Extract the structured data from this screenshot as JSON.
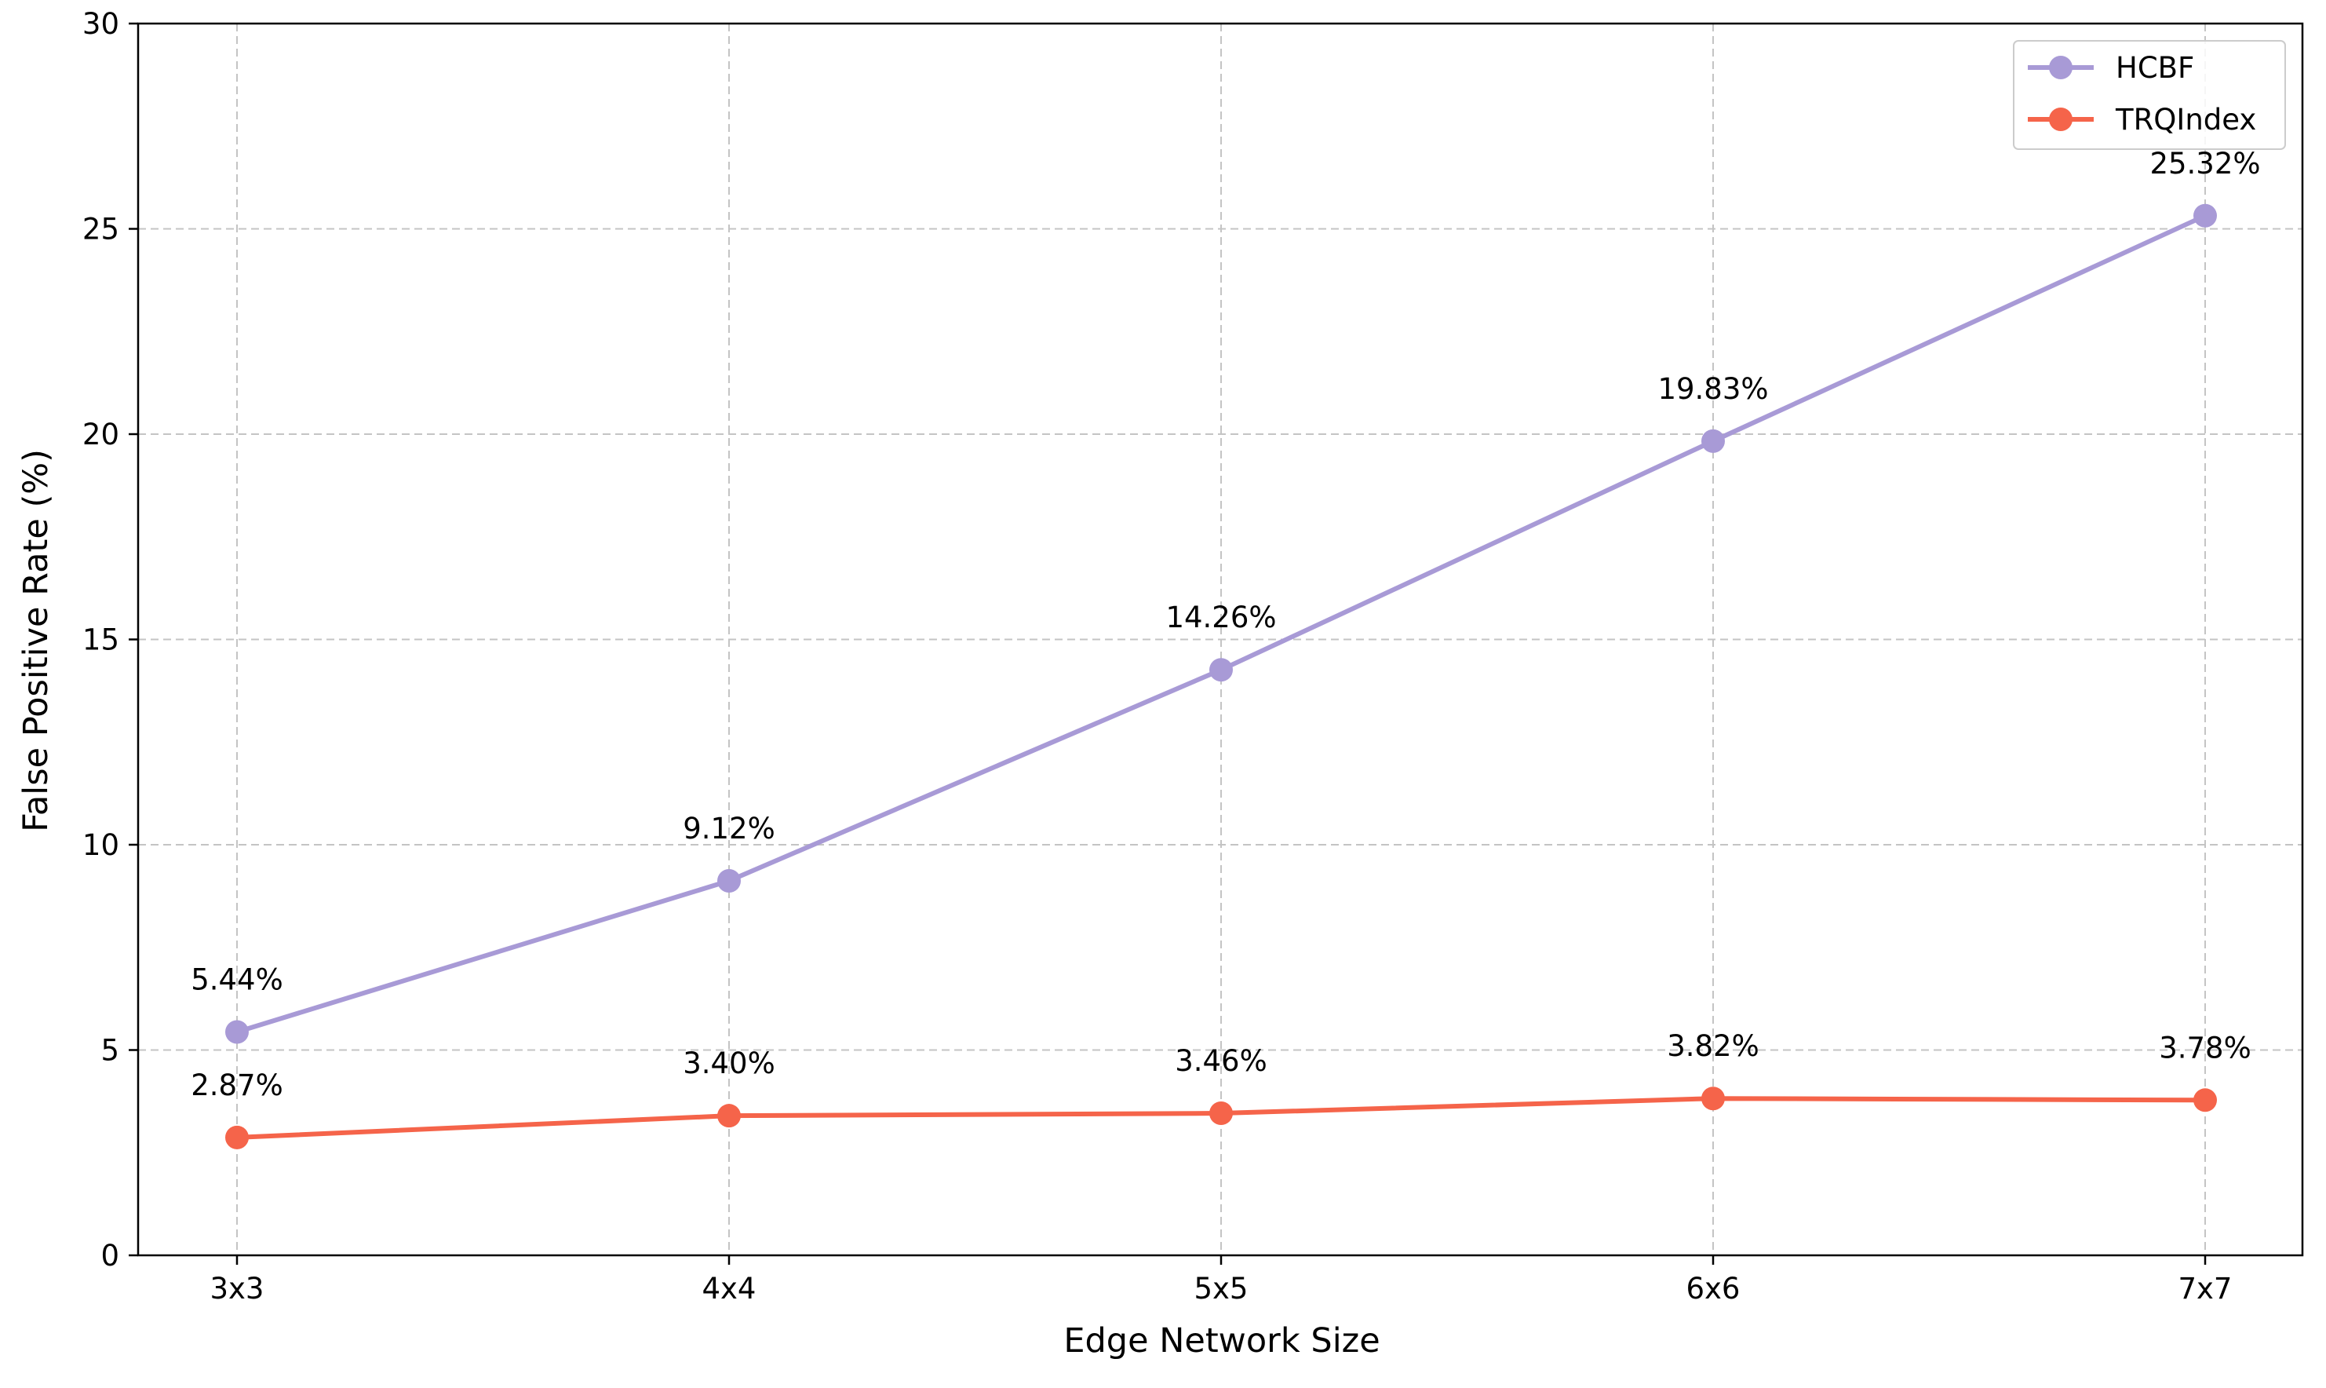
{
  "chart_data": {
    "type": "line",
    "title": "",
    "xlabel": "Edge Network Size",
    "ylabel": "False Positive Rate (%)",
    "categories": [
      "3x3",
      "4x4",
      "5x5",
      "6x6",
      "7x7"
    ],
    "ylim": [
      0,
      30
    ],
    "yticks": [
      0,
      5,
      10,
      15,
      20,
      25,
      30
    ],
    "grid": true,
    "legend_position": "top-right",
    "series": [
      {
        "name": "HCBF",
        "color": "#a89ad6",
        "values": [
          5.44,
          9.12,
          14.26,
          19.83,
          25.32
        ],
        "labels": [
          "5.44%",
          "9.12%",
          "14.26%",
          "19.83%",
          "25.32%"
        ]
      },
      {
        "name": "TRQIndex",
        "color": "#f5644a",
        "values": [
          2.87,
          3.4,
          3.46,
          3.82,
          3.78
        ],
        "labels": [
          "2.87%",
          "3.40%",
          "3.46%",
          "3.82%",
          "3.78%"
        ]
      }
    ]
  }
}
